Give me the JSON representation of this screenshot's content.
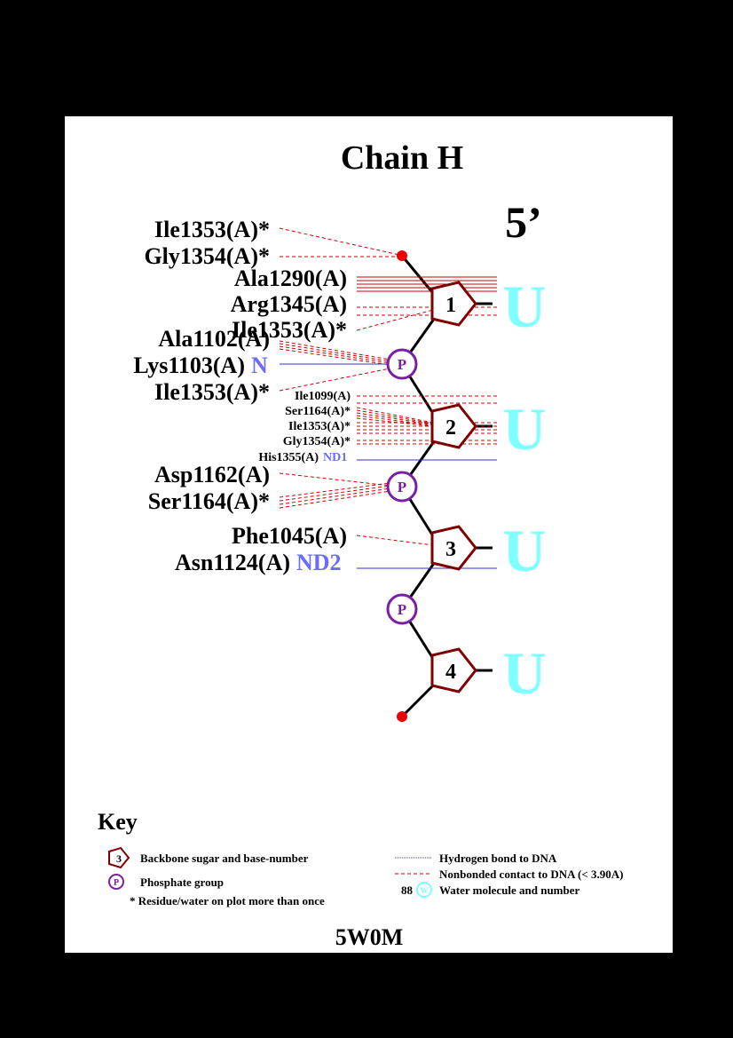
{
  "title": "Chain H",
  "five_prime": "5’",
  "footer_id": "5W0M",
  "bases": [
    "U",
    "U",
    "U",
    "U"
  ],
  "sugar_numbers": [
    "1",
    "2",
    "3",
    "4"
  ],
  "phosphate_label": "P",
  "residues": {
    "r1": "Ile1353(A)*",
    "r2": "Gly1354(A)*",
    "r3": "Ala1290(A)",
    "r4": "Arg1345(A)",
    "r5": "Ile1353(A)*",
    "r6": "Ala1102(A)",
    "r7": "Lys1103(A)",
    "r7_atom": "N",
    "r8": "Ile1353(A)*",
    "s1": "Ile1099(A)",
    "s2": "Ser1164(A)*",
    "s3": "Ile1353(A)*",
    "s4": "Gly1354(A)*",
    "s5": "His1355(A)",
    "s5_atom": "ND1",
    "r9": "Asp1162(A)",
    "r10": "Ser1164(A)*",
    "r11": "Phe1045(A)",
    "r12": "Asn1124(A)",
    "r12_atom": "ND2"
  },
  "key": {
    "title": "Key",
    "sugar_sample": "3",
    "sugar_text": "Backbone sugar and base-number",
    "phosphate_sample": "P",
    "phosphate_text": "Phosphate group",
    "asterisk_text": "* Residue/water on plot more than once",
    "hbond_text": "Hydrogen bond to DNA",
    "nonbonded_text": "Nonbonded contact to DNA (< 3.90A)",
    "water_number": "88",
    "water_sample": "W",
    "water_text": "Water molecule and number"
  },
  "colors": {
    "base": "#7fffff",
    "sugar": "#7f0000",
    "phosphate": "#7b1fa2",
    "hbond": "#3333cc",
    "nonbonded": "#cc0000",
    "atom": "#6b6bff",
    "terminal": "#ee0000"
  }
}
